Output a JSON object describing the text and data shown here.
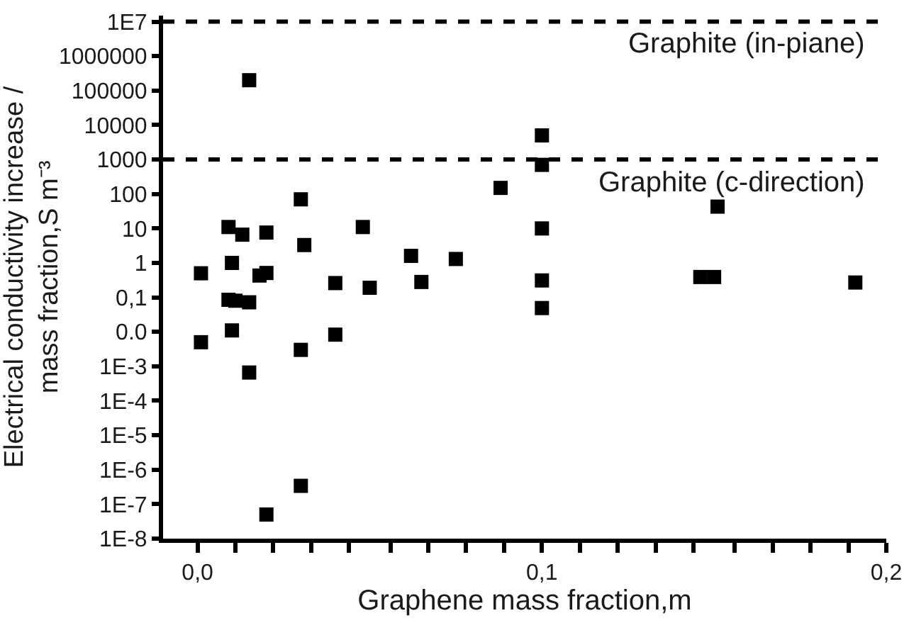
{
  "chart_data": {
    "type": "scatter",
    "xlabel": "Graphene mass fraction,m",
    "ylabel": "Electrical conductivity increase /\nmass fraction,S m⁻³",
    "log": "y",
    "marker": "square",
    "xlim": [
      -0.01,
      0.2
    ],
    "xticks": [
      {
        "value": 0,
        "label": "0,0"
      },
      {
        "value": 0.011,
        "label": null
      },
      {
        "value": 0.022,
        "label": null
      },
      {
        "value": 0.033,
        "label": null
      },
      {
        "value": 0.044,
        "label": null
      },
      {
        "value": 0.056,
        "label": null
      },
      {
        "value": 0.067,
        "label": null
      },
      {
        "value": 0.078,
        "label": null
      },
      {
        "value": 0.089,
        "label": null
      },
      {
        "value": 0.1,
        "label": "0,1"
      },
      {
        "value": 0.111,
        "label": null
      },
      {
        "value": 0.122,
        "label": null
      },
      {
        "value": 0.133,
        "label": null
      },
      {
        "value": 0.144,
        "label": null
      },
      {
        "value": 0.156,
        "label": null
      },
      {
        "value": 0.167,
        "label": null
      },
      {
        "value": 0.178,
        "label": null
      },
      {
        "value": 0.189,
        "label": null
      },
      {
        "value": 0.2,
        "label": "0,2"
      }
    ],
    "ylim": [
      1e-08,
      15000000.0
    ],
    "yticks": [
      {
        "value": 1e-08,
        "label": "1E-8"
      },
      {
        "value": 1e-07,
        "label": "1E-7"
      },
      {
        "value": 1e-06,
        "label": "1E-6"
      },
      {
        "value": 1e-05,
        "label": "1E-5"
      },
      {
        "value": 0.0001,
        "label": "1E-4"
      },
      {
        "value": 0.001,
        "label": "1E-3"
      },
      {
        "value": 0.01,
        "label": "0.0"
      },
      {
        "value": 0.1,
        "label": "0,1"
      },
      1,
      10,
      100,
      1000,
      10000,
      100000,
      1000000,
      {
        "value": 10000000,
        "label": "1E7"
      }
    ],
    "ref_lines": [
      {
        "axis": "y",
        "value": 10000000,
        "label": "Graphite (in-piane)",
        "color": "#000000",
        "line_style": "dashed"
      },
      {
        "axis": "y",
        "value": 1000,
        "label": "Graphite (c-direction)",
        "color": "#000000",
        "line_style": "dashed"
      }
    ],
    "series": [
      {
        "color": "#000000",
        "x": [
          0.015,
          0.1,
          0.1,
          0.088,
          0.03,
          0.009,
          0.013,
          0.02,
          0.048,
          0.1,
          0.031,
          0.062,
          0.075,
          0.001,
          0.01,
          0.018,
          0.02,
          0.04,
          0.05,
          0.065,
          0.1,
          0.009,
          0.011,
          0.015,
          0.1,
          0.001,
          0.01,
          0.015,
          0.03,
          0.04,
          0.03,
          0.02,
          0.151,
          0.146,
          0.15,
          0.191
        ],
        "values": [
          200000,
          5000,
          700,
          150,
          70,
          11,
          6.6,
          7.6,
          11,
          10,
          3.3,
          1.6,
          1.3,
          0.5,
          1,
          0.43,
          0.51,
          0.26,
          0.19,
          0.28,
          0.31,
          0.085,
          0.08,
          0.072,
          0.049,
          0.005,
          0.011,
          0.00066,
          0.003,
          0.0083,
          3.4e-07,
          5e-08,
          43,
          0.39,
          0.39,
          0.27
        ]
      }
    ]
  }
}
